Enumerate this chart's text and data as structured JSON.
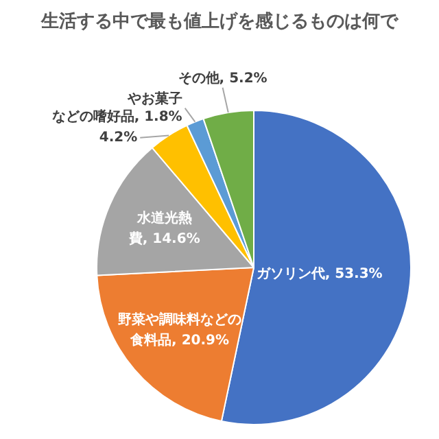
{
  "chart_data": {
    "type": "pie",
    "title": "生活する中で最も値上げを感じるものは何で",
    "categories": [
      "ガソリン代",
      "野菜や調味料などの食料品",
      "水道光熱費",
      null,
      "やお菓子などの嗜好品",
      "その他"
    ],
    "values": [
      53.3,
      20.9,
      14.6,
      4.2,
      1.8,
      5.2
    ],
    "colors": [
      "#4472c4",
      "#ed7d31",
      "#a5a5a5",
      "#ffc000",
      "#5b9bd5",
      "#70ad47"
    ],
    "value_labels": [
      "53.3%",
      "20.9%",
      "14.6%",
      "4.2%",
      "1.8%",
      "5.2%"
    ],
    "legend": false
  }
}
